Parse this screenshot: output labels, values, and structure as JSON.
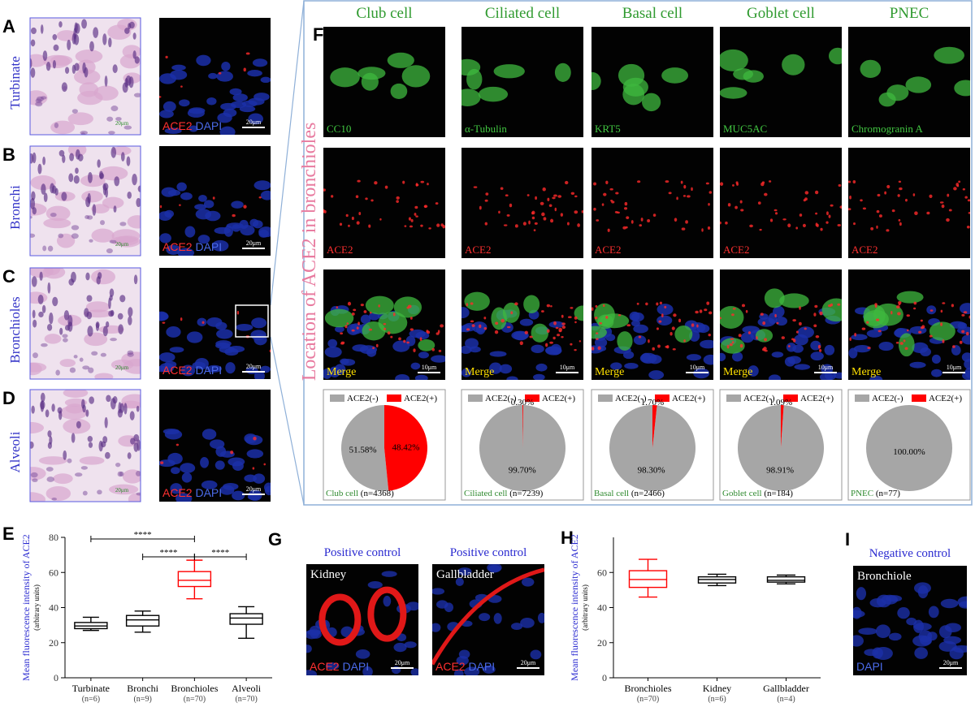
{
  "rows": [
    {
      "letter": "A",
      "label": "Turbinate",
      "he_scale": "20μm",
      "stain": [
        "ACE2",
        "DAPI"
      ],
      "scale": "20μm"
    },
    {
      "letter": "B",
      "label": "Bronchi",
      "he_scale": "20μm",
      "stain": [
        "ACE2",
        "DAPI"
      ],
      "scale": "20μm"
    },
    {
      "letter": "C",
      "label": "Bronchioles",
      "he_scale": "20μm",
      "stain": [
        "ACE2",
        "DAPI"
      ],
      "scale": "20μm"
    },
    {
      "letter": "D",
      "label": "Alveoli",
      "he_scale": "20μm",
      "stain": [
        "ACE2",
        "DAPI"
      ],
      "scale": "20μm"
    }
  ],
  "f_panel": {
    "letter": "F",
    "side_label": "Location of ACE2 in bronchioles",
    "columns": [
      {
        "title": "Club cell",
        "marker": "CC10",
        "ace2": "ACE2",
        "merge": "Merge",
        "scale": "10μm"
      },
      {
        "title": "Ciliated cell",
        "marker": "α-Tubulin",
        "ace2": "ACE2",
        "merge": "Merge",
        "scale": "10μm"
      },
      {
        "title": "Basal cell",
        "marker": "KRT5",
        "ace2": "ACE2",
        "merge": "Merge",
        "scale": "10μm"
      },
      {
        "title": "Goblet cell",
        "marker": "MUC5AC",
        "ace2": "ACE2",
        "merge": "Merge",
        "scale": "10μm"
      },
      {
        "title": "PNEC",
        "marker": "Chromogranin A",
        "ace2": "ACE2",
        "merge": "Merge",
        "scale": "10μm"
      }
    ]
  },
  "g_panel": {
    "letter": "G",
    "images": [
      {
        "title": "Positive control",
        "tissue": "Kidney",
        "stain": [
          "ACE2",
          "DAPI"
        ],
        "scale": "20μm"
      },
      {
        "title": "Positive control",
        "tissue": "Gallbladder",
        "stain": [
          "ACE2",
          "DAPI"
        ],
        "scale": "20μm"
      }
    ]
  },
  "i_panel": {
    "letter": "I",
    "title": "Negative control",
    "tissue": "Bronchiole",
    "stain": "DAPI",
    "scale": "20μm"
  },
  "chart_data": [
    {
      "type": "pie",
      "categories": [
        "ACE2(-)",
        "ACE2(+)"
      ],
      "colors": [
        "#a6a6a6",
        "#ff0000"
      ],
      "values": [
        51.58,
        48.42
      ],
      "value_labels": [
        "51.58%",
        "48.42%"
      ],
      "caption": "Club cell",
      "n": "(n=4368)"
    },
    {
      "type": "pie",
      "categories": [
        "ACE2(-)",
        "ACE2(+)"
      ],
      "colors": [
        "#a6a6a6",
        "#ff0000"
      ],
      "values": [
        99.7,
        0.3
      ],
      "value_labels": [
        "99.70%",
        "0.30%"
      ],
      "caption": "Ciliated cell",
      "n": "(n=7239)"
    },
    {
      "type": "pie",
      "categories": [
        "ACE2(-)",
        "ACE2(+)"
      ],
      "colors": [
        "#a6a6a6",
        "#ff0000"
      ],
      "values": [
        98.3,
        1.7
      ],
      "value_labels": [
        "98.30%",
        "1.70%"
      ],
      "caption": "Basal cell",
      "n": "(n=2466)"
    },
    {
      "type": "pie",
      "categories": [
        "ACE2(-)",
        "ACE2(+)"
      ],
      "colors": [
        "#a6a6a6",
        "#ff0000"
      ],
      "values": [
        98.91,
        1.09
      ],
      "value_labels": [
        "98.91%",
        "1.09%"
      ],
      "caption": "Goblet cell",
      "n": "(n=184)"
    },
    {
      "type": "pie",
      "categories": [
        "ACE2(-)",
        "ACE2(+)"
      ],
      "colors": [
        "#a6a6a6",
        "#ff0000"
      ],
      "values": [
        100.0,
        0
      ],
      "value_labels": [
        "100.00%",
        null
      ],
      "caption": "PNEC",
      "n": "(n=77)"
    },
    {
      "type": "box",
      "letter": "E",
      "ylabel": "Mean fluorescence intensity of ACE2",
      "ylabel_sub": "(arbitrary units)",
      "categories": [
        "Turbinate",
        "Bronchi",
        "Bronchioles",
        "Alveoli"
      ],
      "n_labels": [
        "(n=6)",
        "(n=9)",
        "(n=70)",
        "(n=70)"
      ],
      "colors": [
        "#000000",
        "#000000",
        "#ff0000",
        "#000000"
      ],
      "boxes": [
        {
          "min": 27,
          "q1": 28,
          "median": 29.5,
          "q3": 31.5,
          "max": 34.5
        },
        {
          "min": 26,
          "q1": 29.5,
          "median": 33,
          "q3": 35.5,
          "max": 38
        },
        {
          "min": 45,
          "q1": 52,
          "median": 55.5,
          "q3": 60.5,
          "max": 67
        },
        {
          "min": 22.5,
          "q1": 30.5,
          "median": 34,
          "q3": 36.5,
          "max": 40.5
        }
      ],
      "significance": [
        {
          "label": "****",
          "pair": [
            0,
            2
          ]
        },
        {
          "label": "****",
          "pair": [
            1,
            2
          ]
        },
        {
          "label": "****",
          "pair": [
            2,
            3
          ]
        }
      ],
      "ylim": [
        0,
        80
      ],
      "yticks": [
        0,
        20,
        40,
        60,
        80
      ]
    },
    {
      "type": "box",
      "letter": "H",
      "ylabel": "Mean fluorescence intensity of ACE2",
      "ylabel_sub": "(arbitrary units)",
      "categories": [
        "Bronchioles",
        "Kidney",
        "Gallbladder"
      ],
      "n_labels": [
        "(n=70)",
        "(n=6)",
        "(n=4)"
      ],
      "colors": [
        "#ff0000",
        "#000000",
        "#000000"
      ],
      "boxes": [
        {
          "min": 46,
          "q1": 51.5,
          "median": 56,
          "q3": 61,
          "max": 67.5
        },
        {
          "min": 52.5,
          "q1": 54,
          "median": 56,
          "q3": 57.5,
          "max": 59
        },
        {
          "min": 53.5,
          "q1": 54.5,
          "median": 55.5,
          "q3": 57.5,
          "max": 58.5
        }
      ],
      "ylim": [
        0,
        80
      ],
      "yticks": [
        0,
        20,
        40,
        60
      ]
    }
  ]
}
